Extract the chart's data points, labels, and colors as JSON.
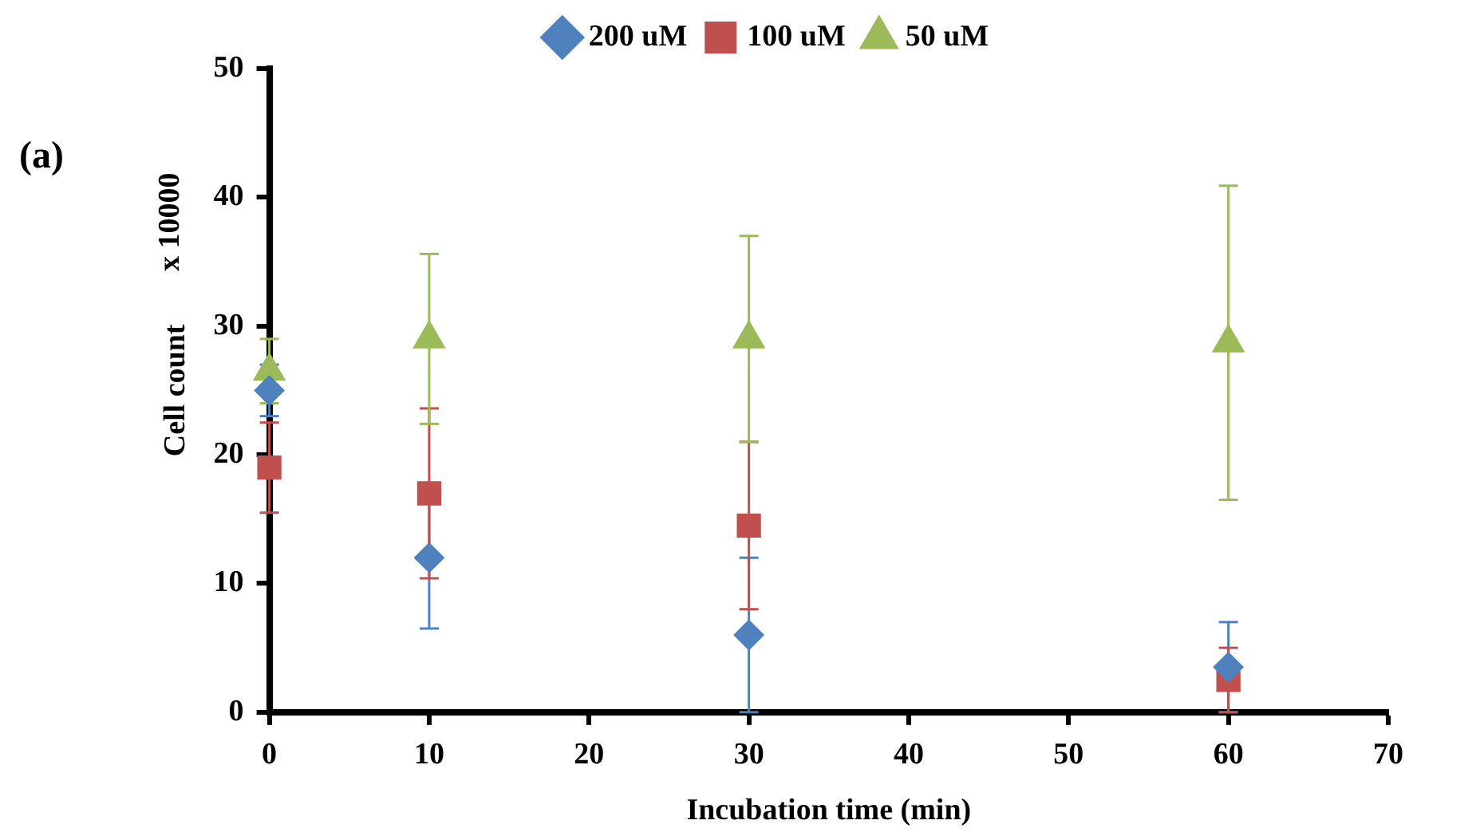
{
  "chart_data": {
    "type": "scatter",
    "xlabel": "Incubation time (min)",
    "ylabel": "Cell count",
    "annotations": [
      "(a)",
      "x 10000"
    ],
    "x": [
      0,
      10,
      30,
      60
    ],
    "xlim": [
      0,
      70
    ],
    "xticks": [
      0,
      10,
      20,
      30,
      40,
      50,
      60,
      70
    ],
    "ylim": [
      0,
      50
    ],
    "yticks": [
      0,
      10,
      20,
      30,
      40,
      50
    ],
    "grid": false,
    "legend": "top",
    "series": [
      {
        "name": "200 uM",
        "color": "#4f81bd",
        "marker": "diamond",
        "values": [
          25,
          12,
          6,
          3.5
        ],
        "errors": [
          2,
          5.5,
          6,
          3.5
        ]
      },
      {
        "name": "100 uM",
        "color": "#c0504d",
        "marker": "square",
        "values": [
          19,
          17,
          14.5,
          2.5
        ],
        "errors": [
          3.5,
          6.6,
          6.5,
          2.5
        ]
      },
      {
        "name": "50 uM",
        "color": "#9bbb59",
        "marker": "triangle",
        "values": [
          26.5,
          29,
          29,
          28.7
        ],
        "errors": [
          2.5,
          6.6,
          8,
          12.2
        ]
      }
    ]
  }
}
